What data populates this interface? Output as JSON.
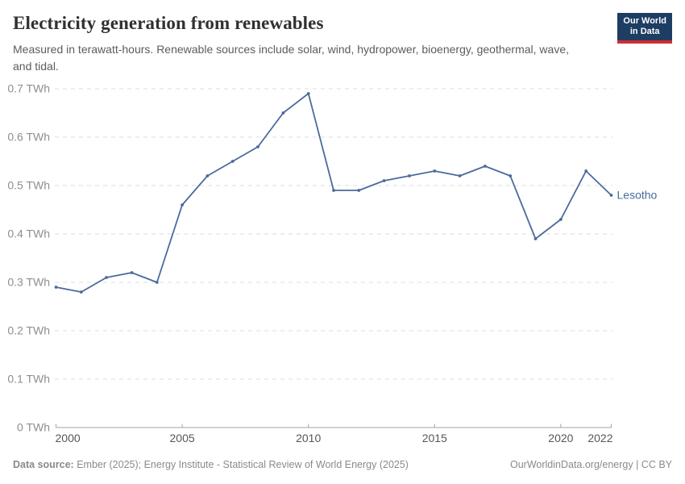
{
  "header": {
    "title": "Electricity generation from renewables",
    "subtitle": "Measured in terawatt-hours. Renewable sources include solar, wind, hydropower, bioenergy, geothermal, wave, and tidal.",
    "logo": {
      "line1": "Our World",
      "line2": "in Data",
      "bg_color": "#1d3d63",
      "accent_color": "#cf2e31"
    }
  },
  "chart_data": {
    "type": "line",
    "title": "Electricity generation from renewables",
    "xlabel": "",
    "ylabel": "",
    "xlim": [
      2000,
      2022
    ],
    "ylim": [
      0,
      0.7
    ],
    "grid": "horizontal-dashed",
    "legend_position": "end-of-line-label",
    "x": [
      2000,
      2001,
      2002,
      2003,
      2004,
      2005,
      2006,
      2007,
      2008,
      2009,
      2010,
      2011,
      2012,
      2013,
      2014,
      2015,
      2016,
      2017,
      2018,
      2019,
      2020,
      2021,
      2022
    ],
    "series": [
      {
        "name": "Lesotho",
        "color": "#4c6a9c",
        "values": [
          0.29,
          0.28,
          0.31,
          0.32,
          0.3,
          0.46,
          0.52,
          0.55,
          0.58,
          0.65,
          0.69,
          0.49,
          0.49,
          0.51,
          0.52,
          0.53,
          0.52,
          0.54,
          0.52,
          0.39,
          0.43,
          0.53,
          0.48
        ]
      }
    ],
    "x_ticks": [
      {
        "value": 2000,
        "label": "2000"
      },
      {
        "value": 2005,
        "label": "2005"
      },
      {
        "value": 2010,
        "label": "2010"
      },
      {
        "value": 2015,
        "label": "2015"
      },
      {
        "value": 2020,
        "label": "2020"
      },
      {
        "value": 2022,
        "label": "2022"
      }
    ],
    "y_ticks": [
      {
        "value": 0,
        "label": "0 TWh"
      },
      {
        "value": 0.1,
        "label": "0.1 TWh"
      },
      {
        "value": 0.2,
        "label": "0.2 TWh"
      },
      {
        "value": 0.3,
        "label": "0.3 TWh"
      },
      {
        "value": 0.4,
        "label": "0.4 TWh"
      },
      {
        "value": 0.5,
        "label": "0.5 TWh"
      },
      {
        "value": 0.6,
        "label": "0.6 TWh"
      },
      {
        "value": 0.7,
        "label": "0.7 TWh"
      }
    ],
    "colors": {
      "gridline": "#dedede",
      "axis_line": "#a3a3a3",
      "y_tick_label": "#8e8e8e",
      "x_tick_label": "#575757"
    }
  },
  "footer": {
    "source_label": "Data source:",
    "source_text": "Ember (2025); Energy Institute - Statistical Review of World Energy (2025)",
    "credit": "OurWorldinData.org/energy | CC BY"
  }
}
